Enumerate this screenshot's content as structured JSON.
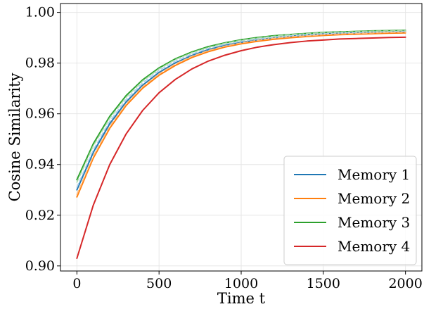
{
  "chart_data": {
    "type": "line",
    "xlabel": "Time t",
    "ylabel": "Cosine Similarity",
    "xlim": [
      -100,
      2100
    ],
    "ylim": [
      0.898,
      1.0035
    ],
    "xticks": [
      0,
      500,
      1000,
      1500,
      2000
    ],
    "xtick_labels": [
      "0",
      "500",
      "1000",
      "1500",
      "2000"
    ],
    "yticks": [
      0.9,
      0.92,
      0.94,
      0.96,
      0.98,
      1.0
    ],
    "ytick_labels": [
      "0.90",
      "0.92",
      "0.94",
      "0.96",
      "0.98",
      "1.00"
    ],
    "grid": true,
    "legend_position": "lower-right",
    "x": [
      0,
      100,
      200,
      300,
      400,
      500,
      600,
      700,
      800,
      900,
      1000,
      1100,
      1200,
      1300,
      1400,
      1500,
      1600,
      1700,
      1800,
      1900,
      2000
    ],
    "series": [
      {
        "name": "Memory 1",
        "color": "#1f77b4",
        "style": "solid",
        "values": [
          0.93,
          0.9448,
          0.9561,
          0.9647,
          0.9713,
          0.9763,
          0.9801,
          0.983,
          0.9853,
          0.987,
          0.9882,
          0.9892,
          0.99,
          0.9906,
          0.9911,
          0.9915,
          0.9918,
          0.992,
          0.9922,
          0.9924,
          0.9925
        ]
      },
      {
        "name": "Memory 1 (reference)",
        "color": "#aed0ea",
        "style": "dashed",
        "values": [
          0.931,
          0.9458,
          0.9571,
          0.9657,
          0.9722,
          0.9771,
          0.9808,
          0.9836,
          0.9858,
          0.9874,
          0.9886,
          0.9895,
          0.9902,
          0.9908,
          0.9912,
          0.9916,
          0.9919,
          0.9921,
          0.9923,
          0.9924,
          0.9926
        ]
      },
      {
        "name": "Memory 2",
        "color": "#ff7f0e",
        "style": "solid",
        "values": [
          0.9272,
          0.9426,
          0.9543,
          0.9633,
          0.9701,
          0.9752,
          0.9791,
          0.9822,
          0.9845,
          0.9863,
          0.9876,
          0.9886,
          0.9894,
          0.99,
          0.9905,
          0.9909,
          0.9912,
          0.9914,
          0.9916,
          0.9918,
          0.9919
        ]
      },
      {
        "name": "Memory 2 (reference)",
        "color": "#ffbf86",
        "style": "dashed",
        "values": [
          0.9282,
          0.9434,
          0.9551,
          0.964,
          0.9707,
          0.9758,
          0.9797,
          0.9827,
          0.985,
          0.9867,
          0.988,
          0.989,
          0.9898,
          0.9904,
          0.9908,
          0.9912,
          0.9915,
          0.9917,
          0.9919,
          0.9921,
          0.9922
        ]
      },
      {
        "name": "Memory 3",
        "color": "#2ca02c",
        "style": "solid",
        "values": [
          0.934,
          0.9482,
          0.959,
          0.9672,
          0.9734,
          0.9781,
          0.9817,
          0.9844,
          0.9865,
          0.988,
          0.9892,
          0.9901,
          0.9908,
          0.9913,
          0.9917,
          0.9921,
          0.9923,
          0.9925,
          0.9927,
          0.9928,
          0.9929
        ]
      },
      {
        "name": "Memory 3 (reference)",
        "color": "#a9dba9",
        "style": "dashed",
        "values": [
          0.933,
          0.9474,
          0.9583,
          0.9666,
          0.9729,
          0.9777,
          0.9814,
          0.9841,
          0.9862,
          0.9878,
          0.989,
          0.9899,
          0.9906,
          0.9912,
          0.9916,
          0.992,
          0.9922,
          0.9924,
          0.9926,
          0.9927,
          0.9928
        ]
      },
      {
        "name": "Memory 4",
        "color": "#d62728",
        "style": "solid",
        "values": [
          0.903,
          0.924,
          0.94,
          0.9521,
          0.9613,
          0.9683,
          0.9736,
          0.9777,
          0.9808,
          0.9831,
          0.9849,
          0.9863,
          0.9873,
          0.9881,
          0.9887,
          0.9891,
          0.9895,
          0.9897,
          0.9899,
          0.9901,
          0.9902
        ]
      }
    ],
    "legend_entries": [
      {
        "label": "Memory 1",
        "color": "#1f77b4"
      },
      {
        "label": "Memory 2",
        "color": "#ff7f0e"
      },
      {
        "label": "Memory 3",
        "color": "#2ca02c"
      },
      {
        "label": "Memory 4",
        "color": "#d62728"
      }
    ]
  }
}
